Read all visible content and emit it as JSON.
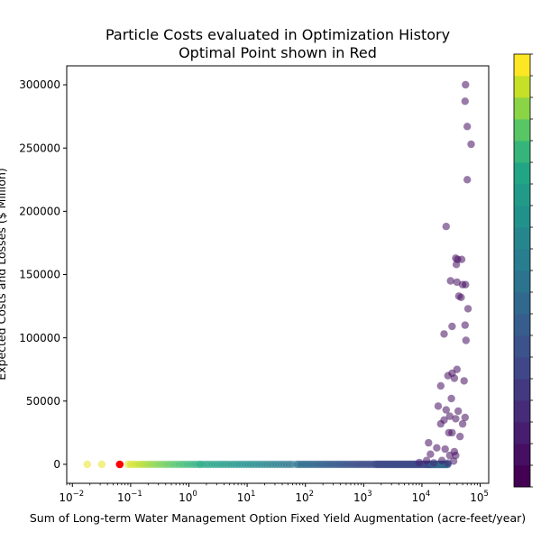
{
  "chart_data": {
    "type": "scatter",
    "title_line1": "Particle Costs evaluated in Optimization History",
    "title_line2": "Optimal Point shown in Red",
    "xlabel": "Sum of Long-term Water Management Option Fixed Yield Augmentation (acre-feet/year)",
    "ylabel": "Expected Costs and Losses ($ Million)",
    "x_scale": "log",
    "xlim": [
      0.008,
      140000
    ],
    "ylim": [
      -15000,
      315000
    ],
    "x_ticks": [
      {
        "value": 0.01,
        "base": "10",
        "exp": "−2"
      },
      {
        "value": 0.1,
        "base": "10",
        "exp": "−1"
      },
      {
        "value": 1,
        "base": "10",
        "exp": "0"
      },
      {
        "value": 10,
        "base": "10",
        "exp": "1"
      },
      {
        "value": 100,
        "base": "10",
        "exp": "2"
      },
      {
        "value": 1000,
        "base": "10",
        "exp": "3"
      },
      {
        "value": 10000,
        "base": "10",
        "exp": "4"
      },
      {
        "value": 100000,
        "base": "10",
        "exp": "5"
      }
    ],
    "y_ticks": [
      {
        "value": 0,
        "label": "0"
      },
      {
        "value": 50000,
        "label": "50000"
      },
      {
        "value": 100000,
        "label": "100000"
      },
      {
        "value": 150000,
        "label": "150000"
      },
      {
        "value": 200000,
        "label": "200000"
      },
      {
        "value": 250000,
        "label": "250000"
      },
      {
        "value": 300000,
        "label": "300000"
      }
    ],
    "colormap": "viridis",
    "colorbar_levels": 20,
    "point_alpha": 0.55,
    "optimal_point": {
      "x": 0.065,
      "y": 0,
      "color": "#ff0000"
    },
    "main_points": [
      [
        56000,
        300000,
        0.05
      ],
      [
        55000,
        287000,
        0.05
      ],
      [
        60000,
        267000,
        0.05
      ],
      [
        70000,
        253000,
        0.05
      ],
      [
        60000,
        225000,
        0.05
      ],
      [
        26000,
        188000,
        0.05
      ],
      [
        38000,
        163000,
        0.05
      ],
      [
        41000,
        162000,
        0.05
      ],
      [
        48000,
        162000,
        0.05
      ],
      [
        39000,
        158000,
        0.05
      ],
      [
        31000,
        145000,
        0.05
      ],
      [
        40000,
        144000,
        0.05
      ],
      [
        50000,
        142000,
        0.05
      ],
      [
        56000,
        142000,
        0.05
      ],
      [
        43000,
        133000,
        0.05
      ],
      [
        47000,
        132000,
        0.05
      ],
      [
        62000,
        123000,
        0.05
      ],
      [
        33000,
        109000,
        0.05
      ],
      [
        55000,
        110000,
        0.05
      ],
      [
        24000,
        103000,
        0.05
      ],
      [
        57000,
        98000,
        0.05
      ],
      [
        40000,
        75000,
        0.05
      ],
      [
        33000,
        72000,
        0.05
      ],
      [
        28000,
        70000,
        0.05
      ],
      [
        36000,
        68000,
        0.05
      ],
      [
        53000,
        66000,
        0.05
      ],
      [
        21000,
        62000,
        0.05
      ],
      [
        32000,
        52000,
        0.05
      ],
      [
        19000,
        46000,
        0.05
      ],
      [
        26000,
        43000,
        0.05
      ],
      [
        42000,
        42000,
        0.05
      ],
      [
        30000,
        38000,
        0.05
      ],
      [
        38000,
        36000,
        0.05
      ],
      [
        55000,
        37000,
        0.05
      ],
      [
        24000,
        35000,
        0.05
      ],
      [
        21000,
        32000,
        0.05
      ],
      [
        50000,
        32000,
        0.05
      ],
      [
        29000,
        25000,
        0.05
      ],
      [
        33000,
        25000,
        0.05
      ],
      [
        45000,
        22000,
        0.05
      ],
      [
        13000,
        17000,
        0.05
      ],
      [
        18000,
        13000,
        0.05
      ],
      [
        25000,
        12000,
        0.05
      ],
      [
        36000,
        10000,
        0.05
      ],
      [
        14000,
        8000,
        0.05
      ],
      [
        30000,
        7000,
        0.05
      ],
      [
        38000,
        7000,
        0.05
      ],
      [
        12000,
        3000,
        0.08
      ],
      [
        22000,
        3000,
        0.08
      ],
      [
        35000,
        2500,
        0.08
      ],
      [
        9000,
        1500,
        0.12
      ],
      [
        16000,
        1200,
        0.15
      ],
      [
        28000,
        1000,
        0.15
      ]
    ],
    "points_note": "",
    "cbar_note": ""
  }
}
